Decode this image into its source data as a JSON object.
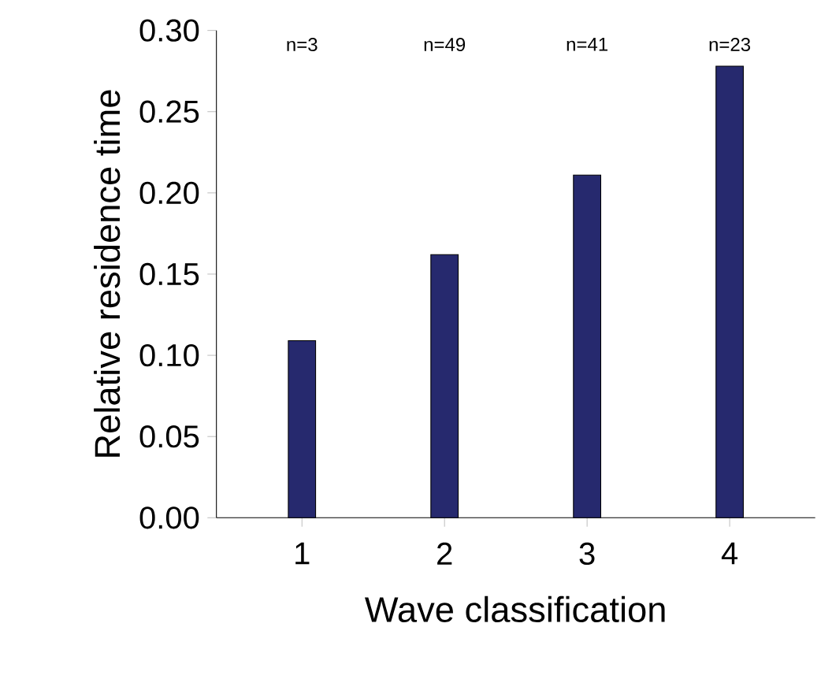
{
  "chart_data": {
    "type": "bar",
    "xlabel": "Wave classification",
    "ylabel": "Relative residence time",
    "categories": [
      "1",
      "2",
      "3",
      "4"
    ],
    "values": [
      0.109,
      0.162,
      0.211,
      0.278
    ],
    "color": "#26296e",
    "ylim": [
      0,
      0.3
    ],
    "yticks": [
      {
        "value": 0,
        "label": "0.00"
      },
      {
        "value": 0.05,
        "label": "0.05"
      },
      {
        "value": 0.1,
        "label": "0.10"
      },
      {
        "value": 0.15,
        "label": "0.15"
      },
      {
        "value": 0.2,
        "label": "0.20"
      },
      {
        "value": 0.25,
        "label": "0.25"
      },
      {
        "value": 0.3,
        "label": "0.30"
      }
    ],
    "annotations": [
      "n=3",
      "n=49",
      "n=41",
      "n=23"
    ]
  }
}
